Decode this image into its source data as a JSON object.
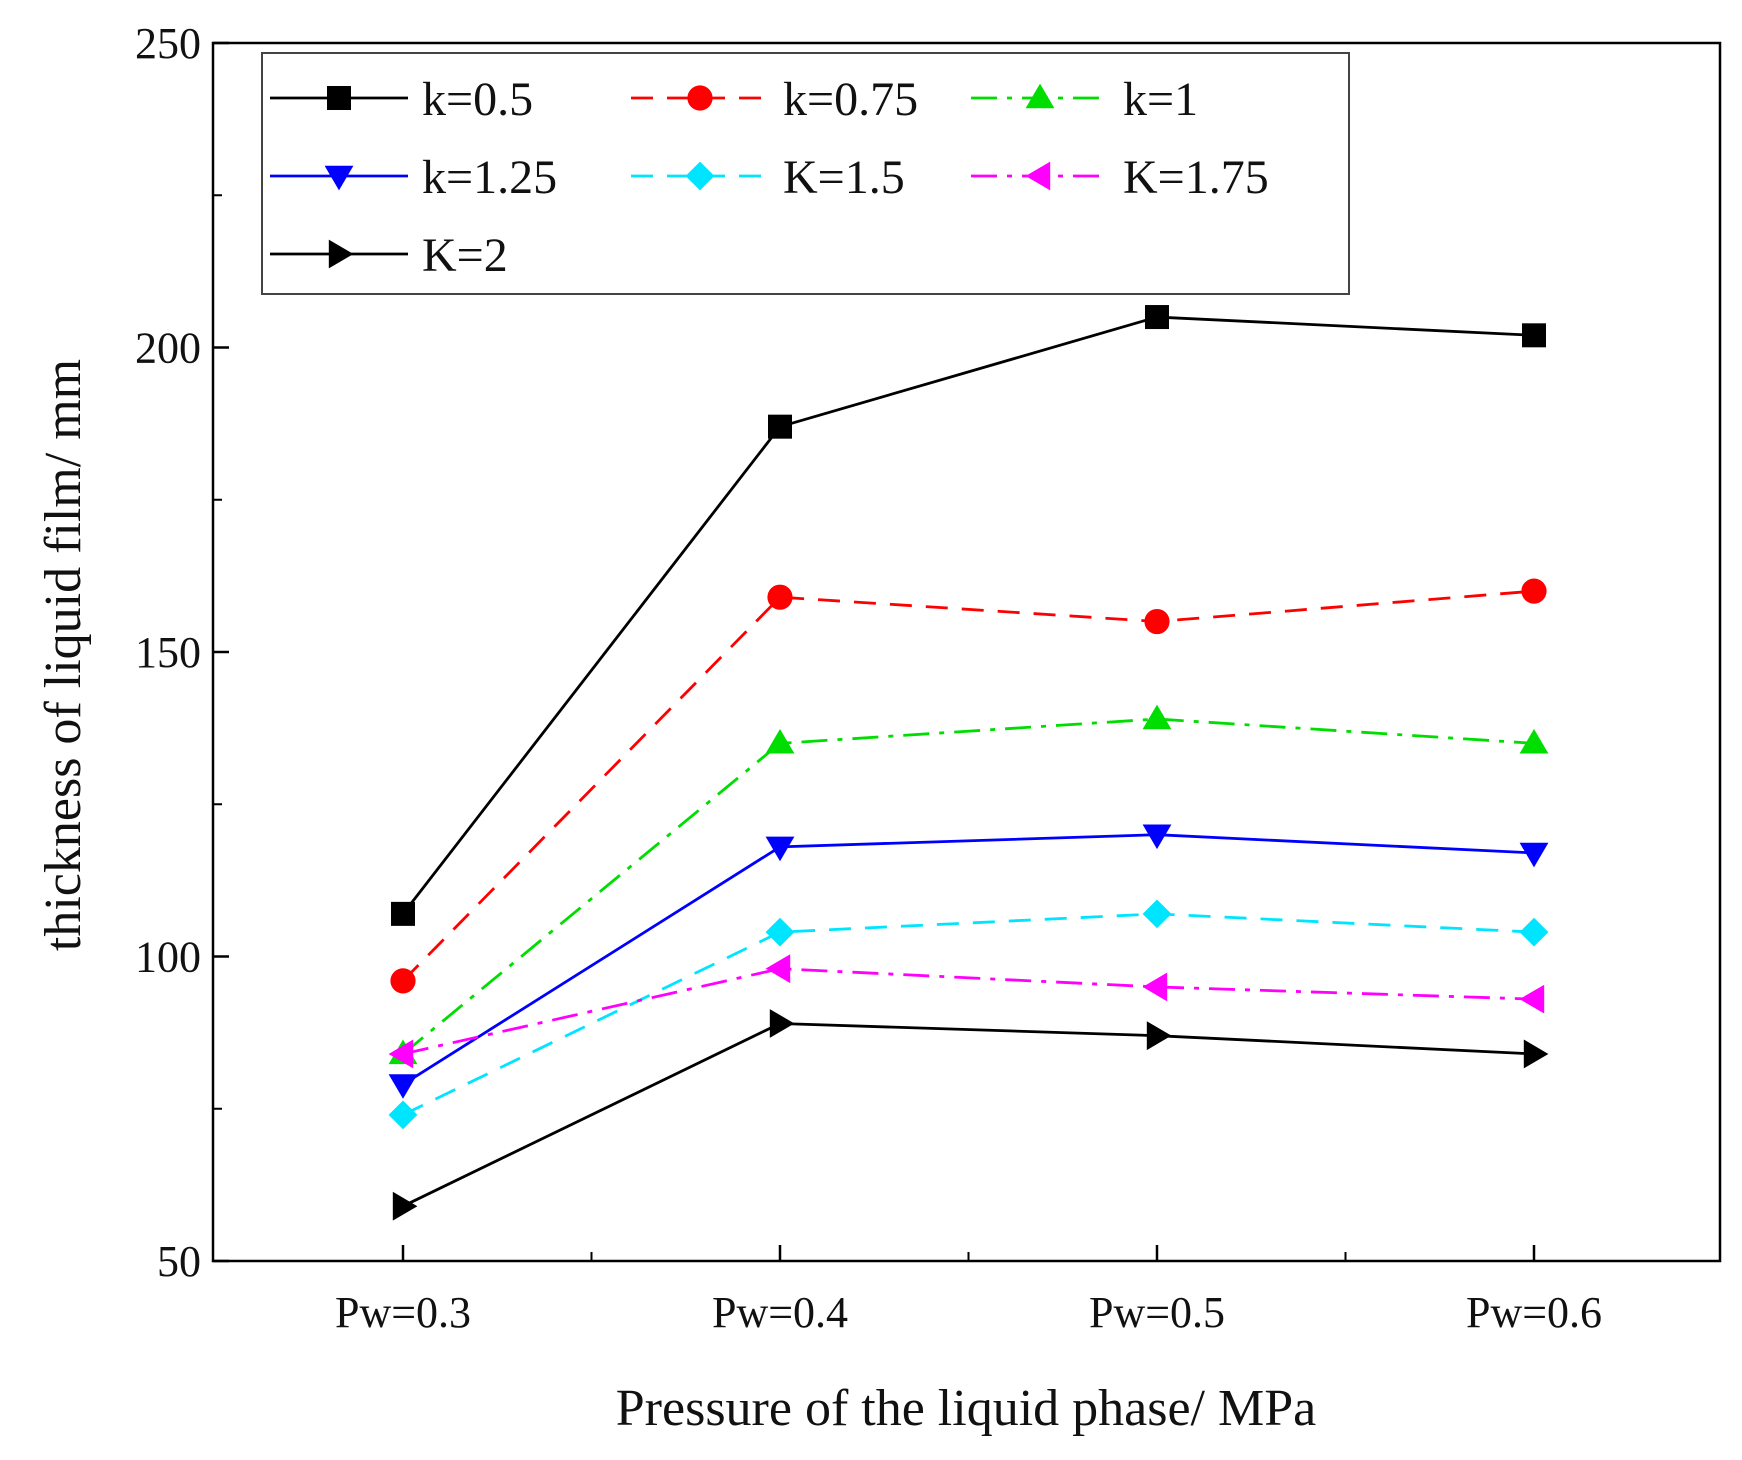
{
  "chart_data": {
    "type": "line",
    "title": "",
    "xlabel": "Pressure of the liquid phase/ MPa",
    "ylabel": "thickness of liquid film/ mm",
    "categories": [
      "Pw=0.3",
      "Pw=0.4",
      "Pw=0.5",
      "Pw=0.6"
    ],
    "ylim": [
      50,
      250
    ],
    "yticks": [
      50,
      100,
      150,
      200,
      250
    ],
    "yminor_step": 25,
    "grid": false,
    "legend_position": "top-left",
    "series": [
      {
        "name": "k=0.5",
        "values": [
          107,
          187,
          205,
          202
        ],
        "color": "#000000",
        "dash": "solid",
        "marker": "square"
      },
      {
        "name": "k=0.75",
        "values": [
          96,
          159,
          155,
          160
        ],
        "color": "#ff0000",
        "dash": "dash",
        "marker": "circle"
      },
      {
        "name": "k=1",
        "values": [
          84,
          135,
          139,
          135
        ],
        "color": "#00dd00",
        "dash": "dashdot",
        "marker": "triangle-up"
      },
      {
        "name": "k=1.25",
        "values": [
          79,
          118,
          120,
          117
        ],
        "color": "#0000ff",
        "dash": "solid",
        "marker": "triangle-down"
      },
      {
        "name": "K=1.5",
        "values": [
          74,
          104,
          107,
          104
        ],
        "color": "#00e5ff",
        "dash": "dash",
        "marker": "diamond"
      },
      {
        "name": "K=1.75",
        "values": [
          84,
          98,
          95,
          93
        ],
        "color": "#ff00ff",
        "dash": "dashdot",
        "marker": "triangle-left"
      },
      {
        "name": "K=2",
        "values": [
          59,
          89,
          87,
          84
        ],
        "color": "#000000",
        "dash": "solid",
        "marker": "triangle-right"
      }
    ]
  }
}
